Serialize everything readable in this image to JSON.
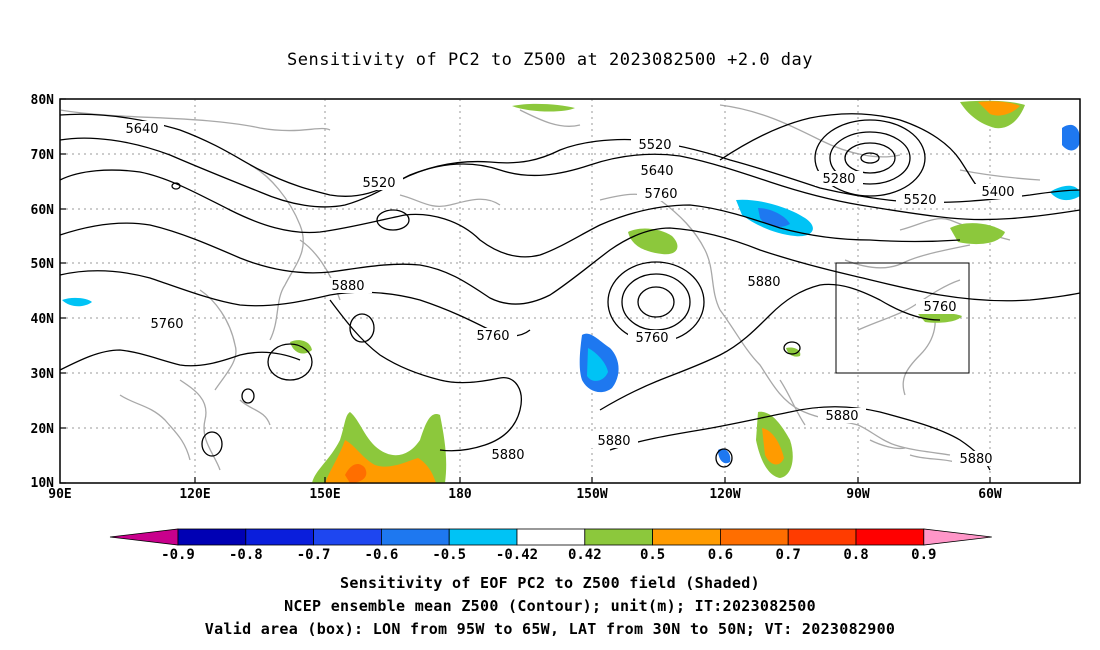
{
  "title": "Sensitivity of PC2 to Z500 at 2023082500 +2.0 day",
  "lat_labels": [
    "80N",
    "70N",
    "60N",
    "50N",
    "40N",
    "30N",
    "20N",
    "10N"
  ],
  "lon_labels": [
    "90E",
    "120E",
    "150E",
    "180",
    "150W",
    "120W",
    "90W",
    "60W"
  ],
  "contour_labels": [
    "5640",
    "5520",
    "5520",
    "5640",
    "5760",
    "5280",
    "5520",
    "5400",
    "5880",
    "5880",
    "5760",
    "5760",
    "5760",
    "5760",
    "5880",
    "5880",
    "5880",
    "5880"
  ],
  "colorbar": {
    "labels": [
      "-0.9",
      "-0.8",
      "-0.7",
      "-0.6",
      "-0.5",
      "-0.42",
      "0.42",
      "0.5",
      "0.6",
      "0.7",
      "0.8",
      "0.9"
    ],
    "colors": [
      "#c8008c",
      "#0000b4",
      "#0a1edc",
      "#1e46f0",
      "#1e78f0",
      "#00c3f5",
      "#ffffff",
      "#8cc83c",
      "#ff9b00",
      "#ff6e00",
      "#ff3c00",
      "#ff0000",
      "#ff96c8"
    ]
  },
  "box": {
    "label": "Valid area",
    "lon": "95W to 65W",
    "lat": "30N to 50N"
  },
  "captions": {
    "line1": "Sensitivity of EOF PC2 to Z500 field (Shaded)",
    "line2": "NCEP ensemble mean Z500 (Contour); unit(m); IT:2023082500",
    "line3": "Valid area (box): LON from 95W to 65W, LAT from 30N to 50N; VT: 2023082900"
  }
}
